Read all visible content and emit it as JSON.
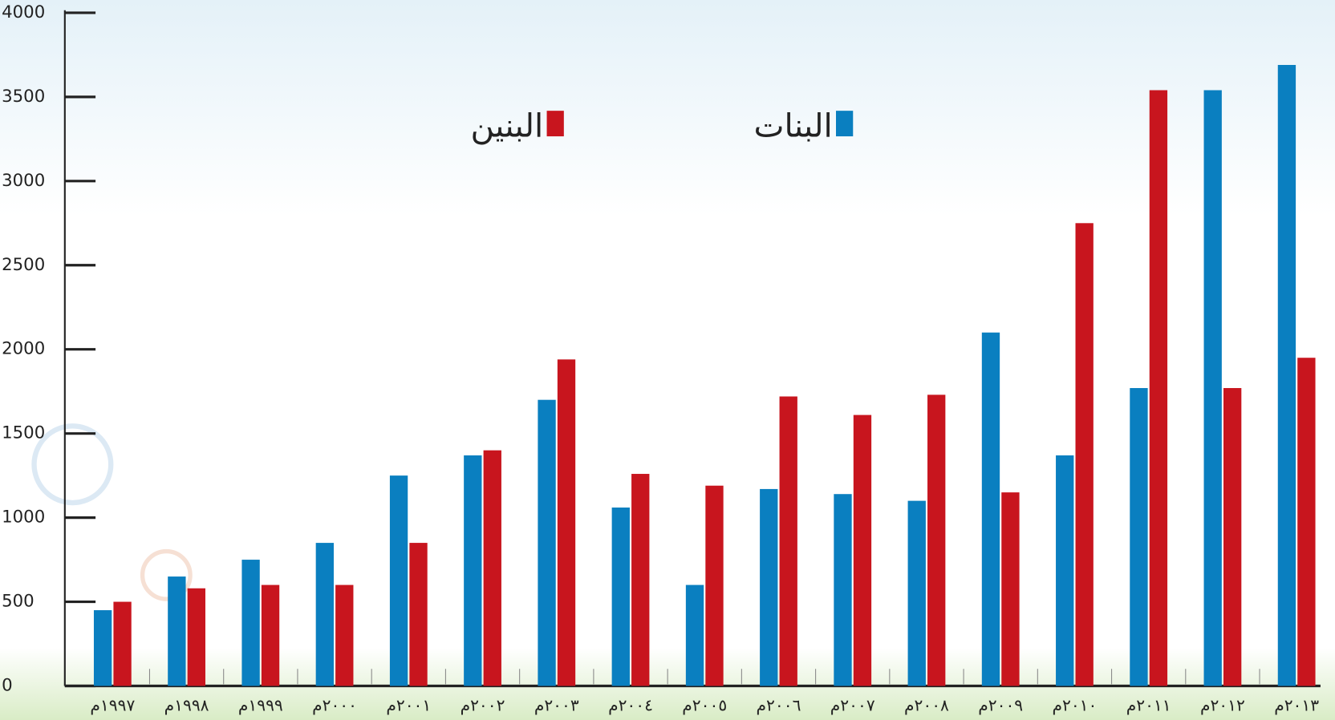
{
  "chart_data": {
    "type": "bar",
    "categories": [
      "١٩٩٧م",
      "١٩٩٨م",
      "١٩٩٩م",
      "٢٠٠٠م",
      "٢٠٠١م",
      "٢٠٠٢م",
      "٢٠٠٣م",
      "٢٠٠٤م",
      "٢٠٠٥م",
      "٢٠٠٦م",
      "٢٠٠٧م",
      "٢٠٠٨م",
      "٢٠٠٩م",
      "٢٠١٠م",
      "٢٠١١م",
      "٢٠١٢م",
      "٢٠١٣م"
    ],
    "series": [
      {
        "name": "البنات",
        "color": "#0a7fc0",
        "values": [
          450,
          650,
          750,
          850,
          1250,
          1370,
          1700,
          1060,
          600,
          1170,
          1140,
          1100,
          2100,
          1370,
          1770,
          3540,
          3690
        ]
      },
      {
        "name": "البنين",
        "color": "#c8151e",
        "values": [
          500,
          580,
          600,
          600,
          850,
          1400,
          1940,
          1260,
          1190,
          1720,
          1610,
          1730,
          1150,
          2750,
          3540,
          1770,
          1950
        ]
      }
    ],
    "ylim": [
      0,
      4000
    ],
    "yticks": [
      0,
      500,
      1000,
      1500,
      2000,
      2500,
      3000,
      3500,
      4000
    ]
  }
}
